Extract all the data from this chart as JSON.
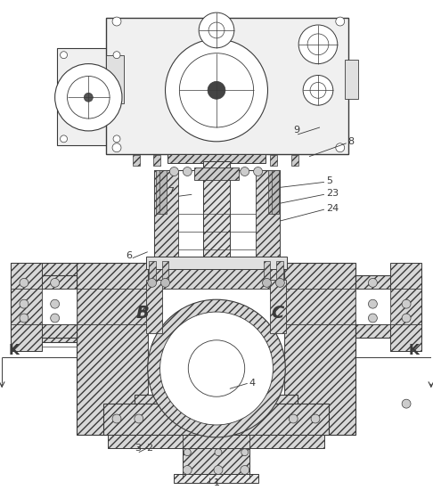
{
  "bg_color": "#ffffff",
  "lc": "#3a3a3a",
  "lc_thin": "#555555",
  "hatch_fc": "#d8d8d8",
  "figsize": [
    4.86,
    5.5
  ],
  "dpi": 100,
  "labels": {
    "K": "K",
    "B": "B",
    "C": "C",
    "1": "1",
    "2": "2",
    "3": "3",
    "4": "4",
    "5": "5",
    "6": "6",
    "7": "7",
    "8": "8",
    "9": "9",
    "23": "23",
    "24": "24"
  }
}
